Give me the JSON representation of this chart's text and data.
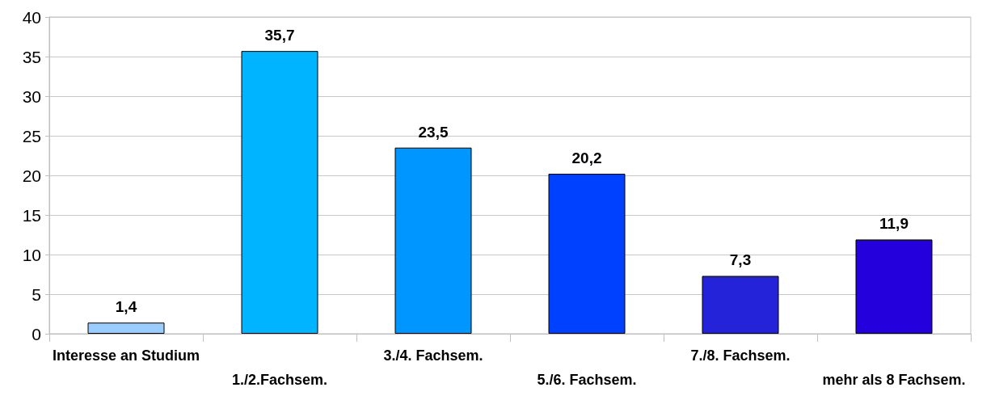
{
  "chart_data": {
    "type": "bar",
    "categories": [
      "Interesse an Studium",
      "1./2.Fachsem.",
      "3./4. Fachsem.",
      "5./6. Fachsem.",
      "7./8. Fachsem.",
      "mehr als 8 Fachsem."
    ],
    "values": [
      1.4,
      35.7,
      23.5,
      20.2,
      7.3,
      11.9
    ],
    "colors": [
      "#99ccff",
      "#00b4ff",
      "#0096ff",
      "#0041ff",
      "#2523d9",
      "#2300dc"
    ],
    "value_labels": [
      "1,4",
      "35,7",
      "23,5",
      "20,2",
      "7,3",
      "11,9"
    ],
    "ylim": [
      0,
      40
    ],
    "yticks": [
      0,
      5,
      10,
      15,
      20,
      25,
      30,
      35,
      40
    ],
    "grid": "y"
  }
}
